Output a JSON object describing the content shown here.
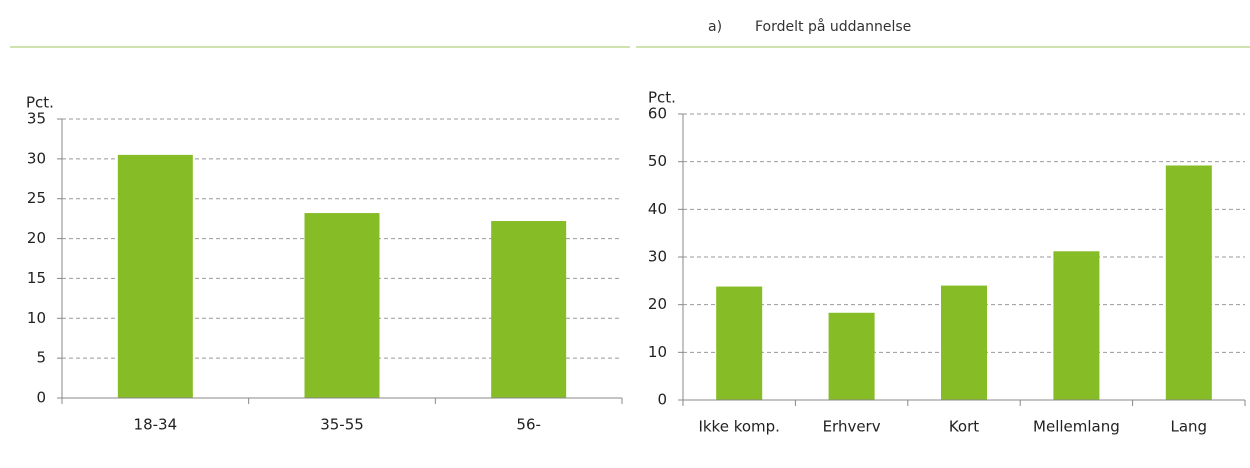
{
  "chart_data": [
    {
      "type": "bar",
      "y_label": "Pct.",
      "categories": [
        "18-34",
        "35-55",
        "56-"
      ],
      "values": [
        30.5,
        23.2,
        22.2
      ],
      "color": "#86bc25",
      "ylim": [
        0,
        35
      ],
      "yticks": [
        0,
        5,
        10,
        15,
        20,
        25,
        30,
        35
      ],
      "grid": true
    },
    {
      "type": "bar",
      "label": "a)",
      "title": "Fordelt på uddannelse",
      "y_label": "Pct.",
      "categories": [
        "Ikke komp.",
        "Erhverv",
        "Kort",
        "Mellemlang",
        "Lang"
      ],
      "values": [
        23.8,
        18.3,
        24.0,
        31.2,
        49.2
      ],
      "color": "#86bc25",
      "ylim": [
        0,
        60
      ],
      "yticks": [
        0,
        10,
        20,
        30,
        40,
        50,
        60
      ],
      "grid": true
    }
  ]
}
